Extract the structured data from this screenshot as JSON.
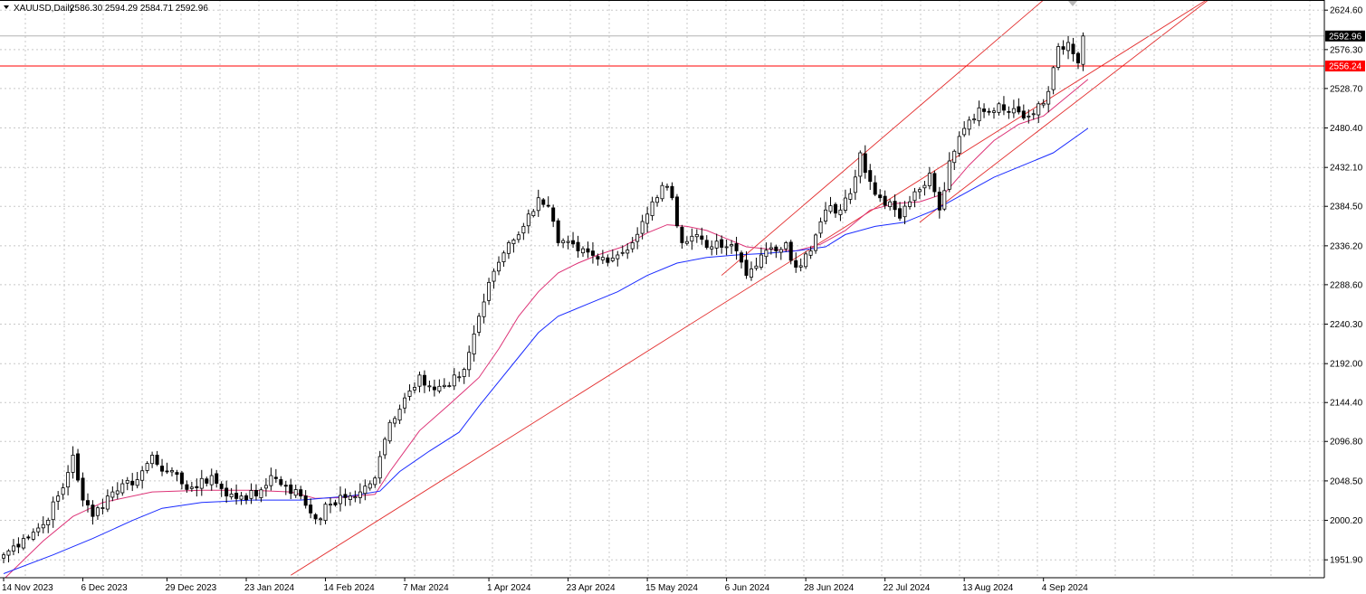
{
  "header": {
    "symbol": "XAUUSD,Daily",
    "ohlc": "2586.30 2594.29 2584.71 2592.96"
  },
  "chart_data": {
    "type": "candlestick",
    "symbol": "XAUUSD",
    "timeframe": "Daily",
    "ylim": [
      1930,
      2637
    ],
    "y_ticks": [
      1951.9,
      2000.2,
      2048.5,
      2096.8,
      2144.4,
      2192.0,
      2240.3,
      2288.6,
      2336.2,
      2384.5,
      2432.1,
      2480.4,
      2528.7,
      2576.3,
      2624.6
    ],
    "x_labels": [
      {
        "label": "14 Nov 2023",
        "index": 0
      },
      {
        "label": "6 Dec 2023",
        "index": 16
      },
      {
        "label": "29 Dec 2023",
        "index": 33
      },
      {
        "label": "23 Jan 2024",
        "index": 49
      },
      {
        "label": "14 Feb 2024",
        "index": 65
      },
      {
        "label": "7 Mar 2024",
        "index": 81
      },
      {
        "label": "1 Apr 2024",
        "index": 98
      },
      {
        "label": "23 Apr 2024",
        "index": 114
      },
      {
        "label": "15 May 2024",
        "index": 130
      },
      {
        "label": "6 Jun 2024",
        "index": 146
      },
      {
        "label": "28 Jun 2024",
        "index": 162
      },
      {
        "label": "22 Jul 2024",
        "index": 178
      },
      {
        "label": "13 Aug 2024",
        "index": 194
      },
      {
        "label": "4 Sep 2024",
        "index": 210
      }
    ],
    "close_anchors": [
      [
        0,
        1958
      ],
      [
        4,
        1978
      ],
      [
        8,
        1995
      ],
      [
        12,
        2040
      ],
      [
        14,
        2080
      ],
      [
        16,
        2025
      ],
      [
        18,
        2005
      ],
      [
        21,
        2030
      ],
      [
        24,
        2045
      ],
      [
        27,
        2050
      ],
      [
        30,
        2080
      ],
      [
        33,
        2060
      ],
      [
        36,
        2045
      ],
      [
        39,
        2040
      ],
      [
        42,
        2055
      ],
      [
        45,
        2030
      ],
      [
        48,
        2030
      ],
      [
        51,
        2030
      ],
      [
        54,
        2055
      ],
      [
        57,
        2042
      ],
      [
        60,
        2030
      ],
      [
        63,
        2002
      ],
      [
        66,
        2020
      ],
      [
        69,
        2028
      ],
      [
        72,
        2035
      ],
      [
        75,
        2052
      ],
      [
        78,
        2120
      ],
      [
        81,
        2150
      ],
      [
        84,
        2178
      ],
      [
        87,
        2160
      ],
      [
        90,
        2165
      ],
      [
        93,
        2185
      ],
      [
        96,
        2250
      ],
      [
        99,
        2305
      ],
      [
        102,
        2340
      ],
      [
        105,
        2360
      ],
      [
        108,
        2395
      ],
      [
        110,
        2385
      ],
      [
        112,
        2340
      ],
      [
        116,
        2330
      ],
      [
        120,
        2320
      ],
      [
        124,
        2325
      ],
      [
        127,
        2340
      ],
      [
        130,
        2375
      ],
      [
        133,
        2410
      ],
      [
        135,
        2395
      ],
      [
        137,
        2340
      ],
      [
        140,
        2350
      ],
      [
        143,
        2335
      ],
      [
        146,
        2335
      ],
      [
        148,
        2330
      ],
      [
        150,
        2300
      ],
      [
        153,
        2325
      ],
      [
        156,
        2330
      ],
      [
        158,
        2340
      ],
      [
        160,
        2310
      ],
      [
        163,
        2330
      ],
      [
        166,
        2380
      ],
      [
        169,
        2380
      ],
      [
        171,
        2400
      ],
      [
        173,
        2450
      ],
      [
        175,
        2415
      ],
      [
        177,
        2395
      ],
      [
        179,
        2390
      ],
      [
        181,
        2370
      ],
      [
        183,
        2390
      ],
      [
        185,
        2405
      ],
      [
        187,
        2425
      ],
      [
        189,
        2380
      ],
      [
        191,
        2440
      ],
      [
        193,
        2470
      ],
      [
        195,
        2490
      ],
      [
        197,
        2505
      ],
      [
        199,
        2500
      ],
      [
        201,
        2510
      ],
      [
        203,
        2500
      ],
      [
        205,
        2500
      ],
      [
        207,
        2495
      ],
      [
        209,
        2510
      ],
      [
        211,
        2525
      ],
      [
        213,
        2580
      ],
      [
        215,
        2585
      ],
      [
        217,
        2560
      ],
      [
        218,
        2592.96
      ]
    ],
    "series": [
      {
        "name": "",
        "kind": "moving-average",
        "color": "#dd3377",
        "values": [
          [
            0,
            1928
          ],
          [
            8,
            1975
          ],
          [
            14,
            2005
          ],
          [
            20,
            2022
          ],
          [
            30,
            2035
          ],
          [
            40,
            2037
          ],
          [
            50,
            2037
          ],
          [
            58,
            2035
          ],
          [
            63,
            2027
          ],
          [
            68,
            2028
          ],
          [
            75,
            2032
          ],
          [
            78,
            2060
          ],
          [
            84,
            2110
          ],
          [
            90,
            2142
          ],
          [
            96,
            2175
          ],
          [
            100,
            2210
          ],
          [
            104,
            2250
          ],
          [
            108,
            2280
          ],
          [
            112,
            2303
          ],
          [
            116,
            2315
          ],
          [
            120,
            2325
          ],
          [
            125,
            2335
          ],
          [
            130,
            2352
          ],
          [
            134,
            2362
          ],
          [
            138,
            2360
          ],
          [
            142,
            2355
          ],
          [
            146,
            2345
          ],
          [
            150,
            2335
          ],
          [
            155,
            2332
          ],
          [
            160,
            2330
          ],
          [
            165,
            2338
          ],
          [
            170,
            2355
          ],
          [
            175,
            2380
          ],
          [
            180,
            2388
          ],
          [
            185,
            2390
          ],
          [
            190,
            2400
          ],
          [
            195,
            2435
          ],
          [
            200,
            2465
          ],
          [
            205,
            2485
          ],
          [
            210,
            2495
          ],
          [
            214,
            2515
          ],
          [
            219,
            2540
          ]
        ]
      },
      {
        "name": "",
        "kind": "moving-average",
        "color": "#1a2bff",
        "values": [
          [
            0,
            1935
          ],
          [
            10,
            1958
          ],
          [
            18,
            1978
          ],
          [
            26,
            2000
          ],
          [
            32,
            2015
          ],
          [
            40,
            2022
          ],
          [
            50,
            2025
          ],
          [
            60,
            2025
          ],
          [
            70,
            2030
          ],
          [
            76,
            2036
          ],
          [
            80,
            2060
          ],
          [
            86,
            2085
          ],
          [
            92,
            2108
          ],
          [
            96,
            2140
          ],
          [
            100,
            2170
          ],
          [
            104,
            2200
          ],
          [
            108,
            2230
          ],
          [
            112,
            2250
          ],
          [
            118,
            2265
          ],
          [
            124,
            2280
          ],
          [
            130,
            2300
          ],
          [
            136,
            2315
          ],
          [
            142,
            2322
          ],
          [
            148,
            2325
          ],
          [
            154,
            2327
          ],
          [
            160,
            2330
          ],
          [
            166,
            2335
          ],
          [
            170,
            2350
          ],
          [
            176,
            2360
          ],
          [
            182,
            2365
          ],
          [
            188,
            2380
          ],
          [
            194,
            2400
          ],
          [
            200,
            2420
          ],
          [
            206,
            2435
          ],
          [
            212,
            2450
          ],
          [
            219,
            2480
          ]
        ]
      }
    ],
    "horizontal_lines": [
      {
        "value": 2556.24,
        "label": "2556.24",
        "color": "#ff0000"
      },
      {
        "value": 2592.96,
        "label": "2592.96",
        "color": "#000000"
      }
    ],
    "trendlines": [
      {
        "from": [
          58,
          1933
        ],
        "to": [
          245,
          2645
        ],
        "color": "#e32e2e"
      },
      {
        "from": [
          185,
          2365
        ],
        "to": [
          245,
          2645
        ],
        "color": "#e32e2e"
      },
      {
        "from": [
          145,
          2300
        ],
        "to": [
          210,
          2637
        ],
        "color": "#e32e2e"
      }
    ]
  }
}
